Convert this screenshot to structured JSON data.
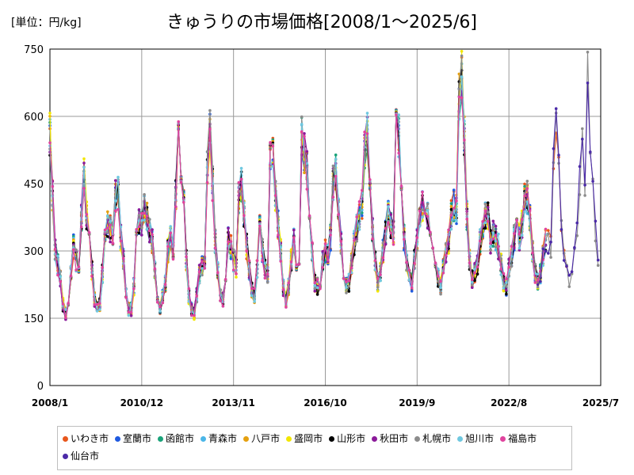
{
  "chart_data": {
    "type": "line",
    "title": "きゅうりの市場価格[2008/1～2025/6]",
    "unit_label": "[単位：円/kg]",
    "xlabel": "",
    "ylabel": "",
    "ylim": [
      0,
      750
    ],
    "yticks": [
      0,
      150,
      300,
      450,
      600,
      750
    ],
    "x_range": [
      "2008-01",
      "2025-07"
    ],
    "xticks": [
      {
        "date": "2008-01",
        "label": "2008/1"
      },
      {
        "date": "2010-12",
        "label": "2010/12"
      },
      {
        "date": "2013-11",
        "label": "2013/11"
      },
      {
        "date": "2016-10",
        "label": "2016/10"
      },
      {
        "date": "2019-09",
        "label": "2019/9"
      },
      {
        "date": "2022-08",
        "label": "2022/8"
      },
      {
        "date": "2025-07",
        "label": "2025/7"
      }
    ],
    "grid": true,
    "legend_position": "bottom",
    "series": [
      {
        "name": "いわき市",
        "color": "#e8571d"
      },
      {
        "name": "室蘭市",
        "color": "#1f5ae0"
      },
      {
        "name": "函館市",
        "color": "#1aa37a"
      },
      {
        "name": "青森市",
        "color": "#4bb6e8"
      },
      {
        "name": "八戸市",
        "color": "#e5a010"
      },
      {
        "name": "盛岡市",
        "color": "#f2e600"
      },
      {
        "name": "山形市",
        "color": "#000000"
      },
      {
        "name": "秋田市",
        "color": "#8b1a9a"
      },
      {
        "name": "札幌市",
        "color": "#8c8c8c"
      },
      {
        "name": "旭川市",
        "color": "#6fc8e0"
      },
      {
        "name": "福島市",
        "color": "#e0449e"
      },
      {
        "name": "仙台市",
        "color": "#4b2aa8"
      }
    ],
    "base_monthly": [
      [
        2008,
        [
          560,
          420,
          300,
          270,
          240,
          180,
          160,
          170,
          250,
          310,
          280,
          250
        ]
      ],
      [
        2009,
        [
          380,
          470,
          380,
          330,
          260,
          190,
          170,
          180,
          250,
          330,
          360,
          350
        ]
      ],
      [
        2010,
        [
          340,
          420,
          430,
          330,
          280,
          200,
          170,
          170,
          220,
          320,
          360,
          360
        ]
      ],
      [
        2011,
        [
          400,
          380,
          350,
          320,
          260,
          190,
          170,
          200,
          230,
          300,
          330,
          300
        ]
      ],
      [
        2012,
        [
          420,
          560,
          470,
          400,
          280,
          200,
          170,
          160,
          200,
          250,
          270,
          280
        ]
      ],
      [
        2013,
        [
          480,
          570,
          450,
          320,
          260,
          200,
          190,
          250,
          330,
          310,
          280,
          260
        ]
      ],
      [
        2014,
        [
          420,
          450,
          380,
          310,
          260,
          210,
          200,
          260,
          350,
          300,
          260,
          250
        ]
      ],
      [
        2015,
        [
          500,
          520,
          420,
          360,
          300,
          220,
          190,
          220,
          280,
          330,
          280,
          270
        ]
      ],
      [
        2016,
        [
          560,
          520,
          480,
          380,
          300,
          230,
          220,
          230,
          280,
          300,
          290,
          330
        ]
      ],
      [
        2017,
        [
          450,
          480,
          400,
          320,
          260,
          220,
          230,
          270,
          320,
          350,
          380,
          400
        ]
      ],
      [
        2018,
        [
          520,
          560,
          460,
          350,
          280,
          230,
          250,
          300,
          340,
          380,
          360,
          340
        ]
      ],
      [
        2019,
        [
          600,
          560,
          420,
          330,
          280,
          240,
          230,
          280,
          330,
          380,
          400,
          390
        ]
      ],
      [
        2020,
        [
          380,
          360,
          330,
          280,
          240,
          220,
          260,
          300,
          320,
          380,
          400,
          390
        ]
      ],
      [
        2021,
        [
          650,
          700,
          560,
          380,
          280,
          240,
          250,
          270,
          320,
          340,
          380,
          380
        ]
      ],
      [
        2022,
        [
          320,
          340,
          330,
          310,
          270,
          230,
          220,
          260,
          290,
          330,
          360,
          330
        ]
      ],
      [
        2023,
        [
          360,
          420,
          420,
          380,
          300,
          250,
          230,
          250,
          290,
          320,
          320,
          310
        ]
      ],
      [
        2024,
        [
          520,
          570,
          480,
          360,
          300,
          250,
          230,
          250,
          300,
          350,
          450,
          540
        ]
      ],
      [
        2025,
        [
          460,
          740,
          520,
          430,
          340,
          280
        ]
      ]
    ]
  }
}
